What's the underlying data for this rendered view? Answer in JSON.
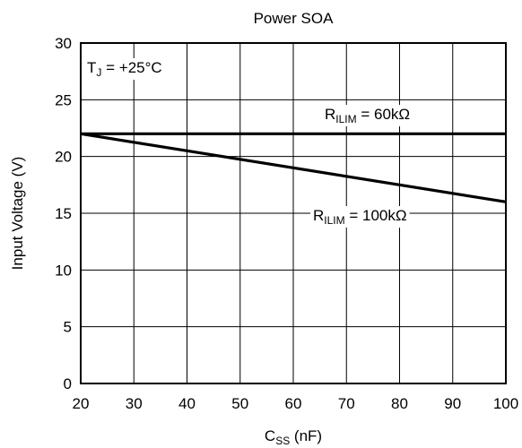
{
  "chart_data": {
    "type": "line",
    "title": "Power SOA",
    "xlabel": {
      "main": "C",
      "sub": "SS",
      "tail": " (nF)"
    },
    "ylabel": "Input Voltage (V)",
    "xlim": [
      20,
      100
    ],
    "ylim": [
      0,
      30
    ],
    "xticks": [
      20,
      30,
      40,
      50,
      60,
      70,
      80,
      90,
      100
    ],
    "yticks": [
      0,
      5,
      10,
      15,
      20,
      25,
      30
    ],
    "grid": true,
    "annotations": [
      {
        "main": "T",
        "sub": "J",
        "tail": " = +25°C"
      }
    ],
    "series": [
      {
        "label": {
          "main": "R",
          "sub": "ILIM",
          "tail": " = 60kΩ"
        },
        "x": [
          20,
          100
        ],
        "y": [
          22,
          22
        ]
      },
      {
        "label": {
          "main": "R",
          "sub": "ILIM",
          "tail": " = 100kΩ"
        },
        "x": [
          20,
          100
        ],
        "y": [
          22,
          16
        ]
      }
    ]
  }
}
